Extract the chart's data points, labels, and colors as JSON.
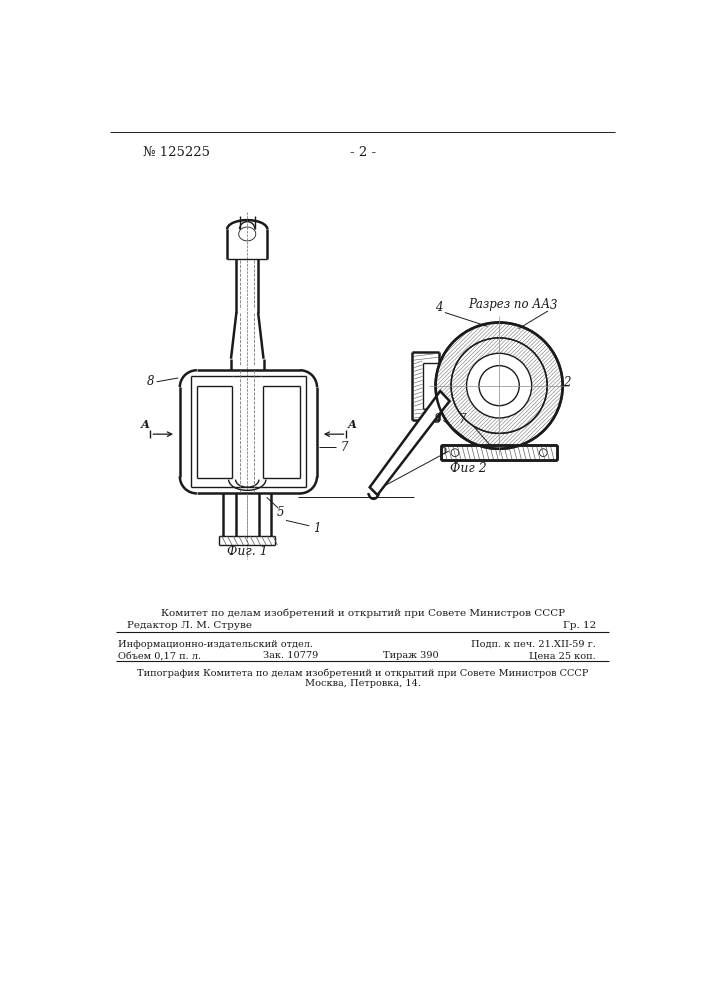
{
  "patent_number": "№ 125225",
  "page_number": "- 2 -",
  "fig1_label": "Фиг. 1",
  "fig2_label": "Фиг 2",
  "section_label": "Разрез по АА",
  "bg_color": "#ffffff",
  "line_color": "#1a1a1a",
  "footer_line1": "Комитет по делам изобретений и открытий при Совете Министров СССР",
  "footer_line2": "Редактор Л. М. Струве",
  "footer_line2_right": "Гр. 12",
  "footer_line3": "Информационно-издательский отдел.",
  "footer_line3_right": "Подп. к печ. 21.XII-59 г.",
  "footer_line4_left": "Объем 0,17 п. л.",
  "footer_line4_mid": "Зак. 10779",
  "footer_line4_mid2": "Тираж 390",
  "footer_line4_right": "Цена 25 коп.",
  "footer_line5": "Типография Комитета по делам изобретений и открытий при Совете Министров СССР",
  "footer_line6": "Москва, Петровка, 14."
}
